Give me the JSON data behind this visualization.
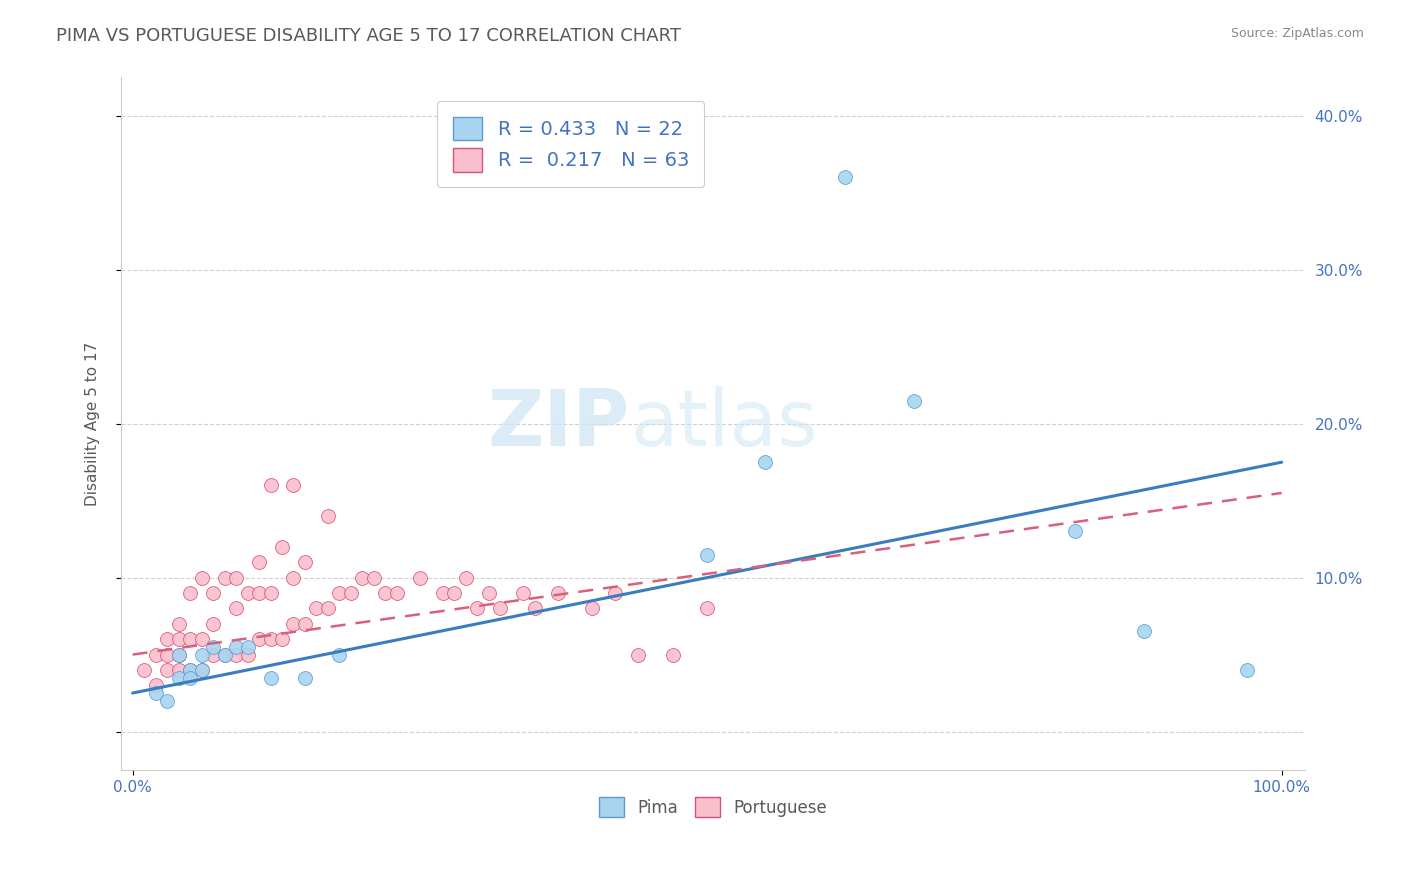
{
  "title": "PIMA VS PORTUGUESE DISABILITY AGE 5 TO 17 CORRELATION CHART",
  "source": "Source: ZipAtlas.com",
  "xlabel": "",
  "ylabel": "Disability Age 5 to 17",
  "xlim": [
    -0.01,
    1.02
  ],
  "ylim": [
    -0.025,
    0.425
  ],
  "yticks": [
    0.0,
    0.1,
    0.2,
    0.3,
    0.4
  ],
  "yticklabels": [
    "",
    "10.0%",
    "20.0%",
    "30.0%",
    "40.0%"
  ],
  "xtick_left": 0.0,
  "xtick_right": 1.0,
  "xticklabel_left": "0.0%",
  "xticklabel_right": "100.0%",
  "pima_R": "0.433",
  "pima_N": "22",
  "portuguese_R": "0.217",
  "portuguese_N": "63",
  "pima_color": "#a8d4f0",
  "portuguese_color": "#f9bfcc",
  "pima_edge_color": "#5b9bd5",
  "portuguese_edge_color": "#d94f7a",
  "pima_line_color": "#3a7dbf",
  "portuguese_line_color": "#d9607a",
  "legend_text_color": "#4472c4",
  "legend_num_color": "#4472c4",
  "watermark_color": "#cce5f5",
  "background_color": "#ffffff",
  "grid_color": "#cccccc",
  "title_color": "#595959",
  "title_fontsize": 13,
  "axis_label_color": "#595959",
  "tick_label_color": "#4472c4",
  "pima_x": [
    0.02,
    0.03,
    0.04,
    0.04,
    0.05,
    0.05,
    0.06,
    0.06,
    0.07,
    0.08,
    0.09,
    0.1,
    0.12,
    0.15,
    0.18,
    0.5,
    0.55,
    0.62,
    0.68,
    0.82,
    0.88,
    0.97
  ],
  "pima_y": [
    0.025,
    0.02,
    0.05,
    0.035,
    0.04,
    0.035,
    0.05,
    0.04,
    0.055,
    0.05,
    0.055,
    0.055,
    0.035,
    0.035,
    0.05,
    0.115,
    0.175,
    0.36,
    0.215,
    0.13,
    0.065,
    0.04
  ],
  "portuguese_x": [
    0.01,
    0.02,
    0.02,
    0.03,
    0.03,
    0.03,
    0.04,
    0.04,
    0.04,
    0.04,
    0.05,
    0.05,
    0.05,
    0.06,
    0.06,
    0.06,
    0.07,
    0.07,
    0.07,
    0.08,
    0.08,
    0.09,
    0.09,
    0.09,
    0.1,
    0.1,
    0.11,
    0.11,
    0.11,
    0.12,
    0.12,
    0.12,
    0.13,
    0.13,
    0.14,
    0.14,
    0.14,
    0.15,
    0.15,
    0.16,
    0.17,
    0.17,
    0.18,
    0.19,
    0.2,
    0.21,
    0.22,
    0.23,
    0.25,
    0.27,
    0.28,
    0.29,
    0.3,
    0.31,
    0.32,
    0.34,
    0.35,
    0.37,
    0.4,
    0.42,
    0.44,
    0.47,
    0.5
  ],
  "portuguese_y": [
    0.04,
    0.03,
    0.05,
    0.04,
    0.05,
    0.06,
    0.04,
    0.05,
    0.06,
    0.07,
    0.04,
    0.06,
    0.09,
    0.04,
    0.06,
    0.1,
    0.05,
    0.07,
    0.09,
    0.05,
    0.1,
    0.05,
    0.08,
    0.1,
    0.05,
    0.09,
    0.06,
    0.09,
    0.11,
    0.06,
    0.09,
    0.16,
    0.06,
    0.12,
    0.07,
    0.1,
    0.16,
    0.07,
    0.11,
    0.08,
    0.08,
    0.14,
    0.09,
    0.09,
    0.1,
    0.1,
    0.09,
    0.09,
    0.1,
    0.09,
    0.09,
    0.1,
    0.08,
    0.09,
    0.08,
    0.09,
    0.08,
    0.09,
    0.08,
    0.09,
    0.05,
    0.05,
    0.08
  ],
  "pima_line_x0": 0.0,
  "pima_line_x1": 1.0,
  "pima_line_y0": 0.025,
  "pima_line_y1": 0.175,
  "port_line_x0": 0.0,
  "port_line_x1": 1.0,
  "port_line_y0": 0.05,
  "port_line_y1": 0.155
}
